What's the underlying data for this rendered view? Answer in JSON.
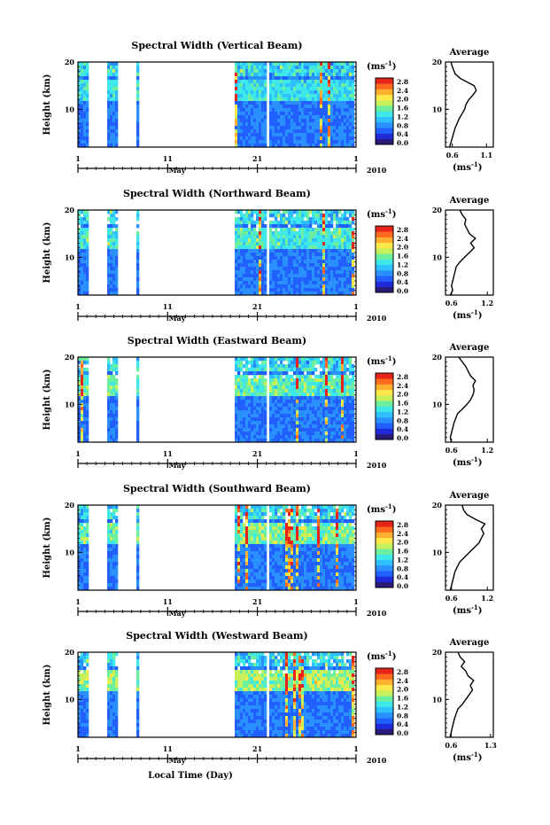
{
  "figure": {
    "x_axis_label": "Local Time (Day)",
    "y_axis_label": "Height (km)",
    "month_label": "May",
    "year_label": "2010",
    "unit_label_base": "(ms",
    "unit_label_exp": "-1",
    "unit_label_close": ")",
    "avg_title": "Average",
    "avg_xlabel_base": "(ms",
    "avg_xlabel_exp": "-1",
    "avg_xlabel_close": ")"
  },
  "colorbar": {
    "ticks": [
      "0.0",
      "0.4",
      "0.8",
      "1.2",
      "1.6",
      "2.0",
      "2.4",
      "2.8"
    ],
    "colors": [
      "#2b1a7a",
      "#1f2bd6",
      "#2160ff",
      "#2a8fff",
      "#2fc0ff",
      "#3fe8e8",
      "#6cf0a0",
      "#c8f05a",
      "#ffe94a",
      "#ffb02e",
      "#ff6a1e",
      "#e8241a"
    ]
  },
  "chart_data": [
    {
      "type": "heatmap",
      "title": "Spectral Width (Vertical Beam)",
      "x_ticks": [
        "1",
        "11",
        "21",
        "1"
      ],
      "y_ticks": [
        "20",
        "10"
      ],
      "ylim": [
        2,
        20
      ],
      "avg": {
        "title": "Average",
        "x_ticks": [
          "0.6",
          "1.1"
        ],
        "xlim": [
          0.5,
          1.2
        ],
        "y_ticks": [
          "20",
          "10"
        ],
        "profile": [
          [
            0.56,
            2
          ],
          [
            0.58,
            3
          ],
          [
            0.6,
            4
          ],
          [
            0.64,
            6
          ],
          [
            0.7,
            8
          ],
          [
            0.74,
            9
          ],
          [
            0.78,
            10
          ],
          [
            0.8,
            11
          ],
          [
            0.84,
            12
          ],
          [
            0.9,
            13
          ],
          [
            0.95,
            14
          ],
          [
            0.92,
            15
          ],
          [
            0.84,
            15.6
          ],
          [
            0.72,
            16.5
          ],
          [
            0.64,
            17.5
          ],
          [
            0.6,
            19
          ],
          [
            0.58,
            20
          ]
        ]
      }
    },
    {
      "type": "heatmap",
      "title": "Spectral Width (Northward Beam)",
      "x_ticks": [
        "1",
        "11",
        "21",
        "1"
      ],
      "y_ticks": [
        "20",
        "10"
      ],
      "ylim": [
        2,
        20
      ],
      "avg": {
        "title": "Average",
        "x_ticks": [
          "0.6",
          "1.2"
        ],
        "xlim": [
          0.5,
          1.3
        ],
        "y_ticks": [
          "20",
          "10"
        ],
        "profile": [
          [
            0.58,
            2
          ],
          [
            0.62,
            3
          ],
          [
            0.6,
            4
          ],
          [
            0.64,
            6
          ],
          [
            0.68,
            8
          ],
          [
            0.74,
            9
          ],
          [
            0.82,
            10
          ],
          [
            0.9,
            11
          ],
          [
            0.98,
            12
          ],
          [
            0.92,
            13
          ],
          [
            1.0,
            14
          ],
          [
            0.9,
            15
          ],
          [
            0.86,
            16
          ],
          [
            0.82,
            17
          ],
          [
            0.84,
            18
          ],
          [
            0.78,
            19
          ],
          [
            0.74,
            20
          ]
        ]
      }
    },
    {
      "type": "heatmap",
      "title": "Spectral Width (Eastward Beam)",
      "x_ticks": [
        "1",
        "11",
        "21",
        "1"
      ],
      "y_ticks": [
        "20",
        "10"
      ],
      "ylim": [
        2,
        20
      ],
      "avg": {
        "title": "Average",
        "x_ticks": [
          "0.6",
          "1.2"
        ],
        "xlim": [
          0.5,
          1.3
        ],
        "y_ticks": [
          "20",
          "10"
        ],
        "profile": [
          [
            0.6,
            2
          ],
          [
            0.58,
            3
          ],
          [
            0.6,
            4
          ],
          [
            0.64,
            6
          ],
          [
            0.7,
            8
          ],
          [
            0.78,
            9
          ],
          [
            0.86,
            10
          ],
          [
            0.92,
            11
          ],
          [
            0.96,
            12
          ],
          [
            0.98,
            13
          ],
          [
            0.96,
            14
          ],
          [
            1.0,
            15
          ],
          [
            0.92,
            16
          ],
          [
            0.88,
            17
          ],
          [
            0.84,
            18
          ],
          [
            0.78,
            19
          ],
          [
            0.72,
            20
          ]
        ]
      }
    },
    {
      "type": "heatmap",
      "title": "Spectral Width (Southward Beam)",
      "x_ticks": [
        "1",
        "11",
        "21",
        "1"
      ],
      "y_ticks": [
        "20",
        "10"
      ],
      "ylim": [
        2,
        20
      ],
      "avg": {
        "title": "Average",
        "x_ticks": [
          "0.6",
          "1.2"
        ],
        "xlim": [
          0.5,
          1.3
        ],
        "y_ticks": [
          "20",
          "10"
        ],
        "profile": [
          [
            0.58,
            2
          ],
          [
            0.6,
            3
          ],
          [
            0.62,
            4
          ],
          [
            0.66,
            6
          ],
          [
            0.74,
            8
          ],
          [
            0.82,
            9
          ],
          [
            0.9,
            10
          ],
          [
            0.98,
            11
          ],
          [
            1.06,
            12
          ],
          [
            1.1,
            13
          ],
          [
            1.14,
            14
          ],
          [
            1.1,
            15
          ],
          [
            1.16,
            16
          ],
          [
            1.0,
            17
          ],
          [
            0.86,
            18
          ],
          [
            0.8,
            19
          ],
          [
            0.78,
            20
          ]
        ]
      }
    },
    {
      "type": "heatmap",
      "title": "Spectral Width (Westward Beam)",
      "x_ticks": [
        "1",
        "11",
        "21",
        "1"
      ],
      "y_ticks": [
        "20",
        "10"
      ],
      "ylim": [
        2,
        20
      ],
      "avg": {
        "title": "Average",
        "x_ticks": [
          "0.6",
          "1.3"
        ],
        "xlim": [
          0.5,
          1.35
        ],
        "y_ticks": [
          "20",
          "10"
        ],
        "profile": [
          [
            0.58,
            2
          ],
          [
            0.6,
            3
          ],
          [
            0.62,
            4
          ],
          [
            0.66,
            6
          ],
          [
            0.72,
            8
          ],
          [
            0.8,
            9
          ],
          [
            0.86,
            10
          ],
          [
            0.92,
            11
          ],
          [
            0.98,
            12
          ],
          [
            0.94,
            13
          ],
          [
            1.0,
            14
          ],
          [
            0.9,
            15
          ],
          [
            0.86,
            16
          ],
          [
            0.78,
            17
          ],
          [
            0.84,
            18
          ],
          [
            0.76,
            19
          ],
          [
            0.72,
            20
          ]
        ]
      }
    }
  ]
}
